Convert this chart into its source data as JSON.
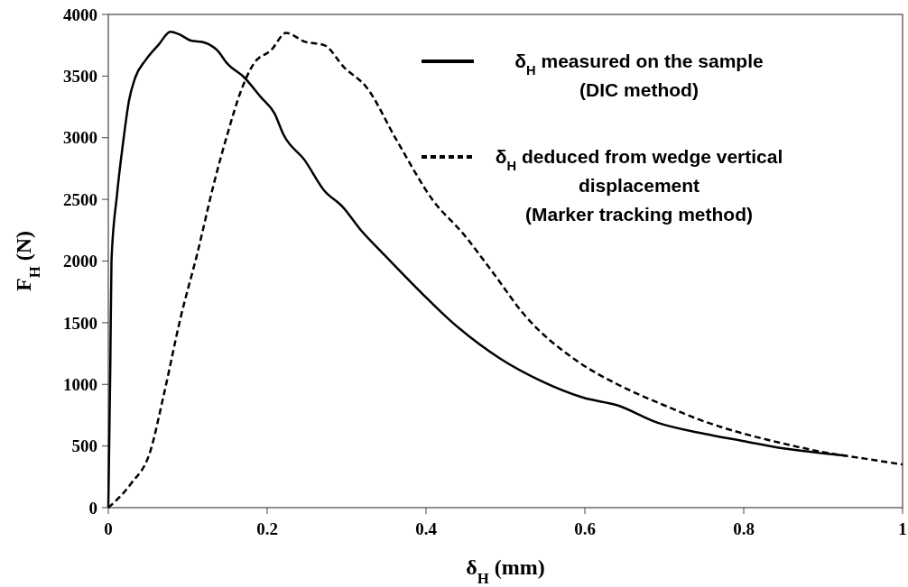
{
  "chart_data": {
    "type": "line",
    "xlabel": "δ$_{H}$ (mm)",
    "ylabel": "F$_{H}$ (N)",
    "xlim": [
      0,
      1
    ],
    "ylim": [
      0,
      4000
    ],
    "xticks": [
      0,
      {
        "value": 0.2,
        "label": "0.2"
      },
      {
        "value": 0.4,
        "label": "0.4"
      },
      {
        "value": 0.6,
        "label": "0.6"
      },
      {
        "value": 0.8,
        "label": "0.8"
      },
      1
    ],
    "yticks": [
      0,
      500,
      1000,
      1500,
      2000,
      2500,
      3000,
      3500,
      4000
    ],
    "grid": false,
    "legend": "top right",
    "marker": "none",
    "series": [
      {
        "name": "δ$_{H}$ measured on the sample (DIC method)",
        "color": "#000000",
        "line_style": "solid",
        "x": [
          0,
          0.0025,
          0.004,
          0.011,
          0.019,
          0.026,
          0.034,
          0.047,
          0.064,
          0.078,
          0.089,
          0.103,
          0.122,
          0.137,
          0.15,
          0.171,
          0.192,
          0.209,
          0.221,
          0.247,
          0.272,
          0.295,
          0.318,
          0.346,
          0.396,
          0.43,
          0.493,
          0.544,
          0.599,
          0.641,
          0.691,
          0.75,
          0.8,
          0.85,
          0.9,
          0.93
        ],
        "values": [
          0,
          1140,
          2000,
          2540,
          2980,
          3300,
          3490,
          3630,
          3760,
          3860,
          3840,
          3790,
          3770,
          3710,
          3600,
          3490,
          3330,
          3200,
          3020,
          2820,
          2570,
          2440,
          2250,
          2060,
          1730,
          1520,
          1210,
          1030,
          890,
          830,
          690,
          600,
          540,
          480,
          440,
          420
        ]
      },
      {
        "name": "δ$_{H}$ deduced from wedge vertical displacement (Marker tracking method)",
        "color": "#000000",
        "line_style": "dashed",
        "x": [
          0,
          0.028,
          0.053,
          0.07,
          0.091,
          0.112,
          0.133,
          0.15,
          0.167,
          0.183,
          0.205,
          0.224,
          0.247,
          0.272,
          0.297,
          0.325,
          0.363,
          0.409,
          0.447,
          0.485,
          0.523,
          0.59,
          0.641,
          0.7,
          0.75,
          0.8,
          0.85,
          0.9,
          0.95,
          1
        ],
        "values": [
          0,
          190,
          460,
          920,
          1540,
          2060,
          2630,
          3030,
          3380,
          3600,
          3710,
          3850,
          3780,
          3750,
          3570,
          3410,
          2980,
          2490,
          2220,
          1900,
          1570,
          1190,
          1000,
          830,
          700,
          600,
          520,
          450,
          400,
          350
        ]
      }
    ]
  }
}
